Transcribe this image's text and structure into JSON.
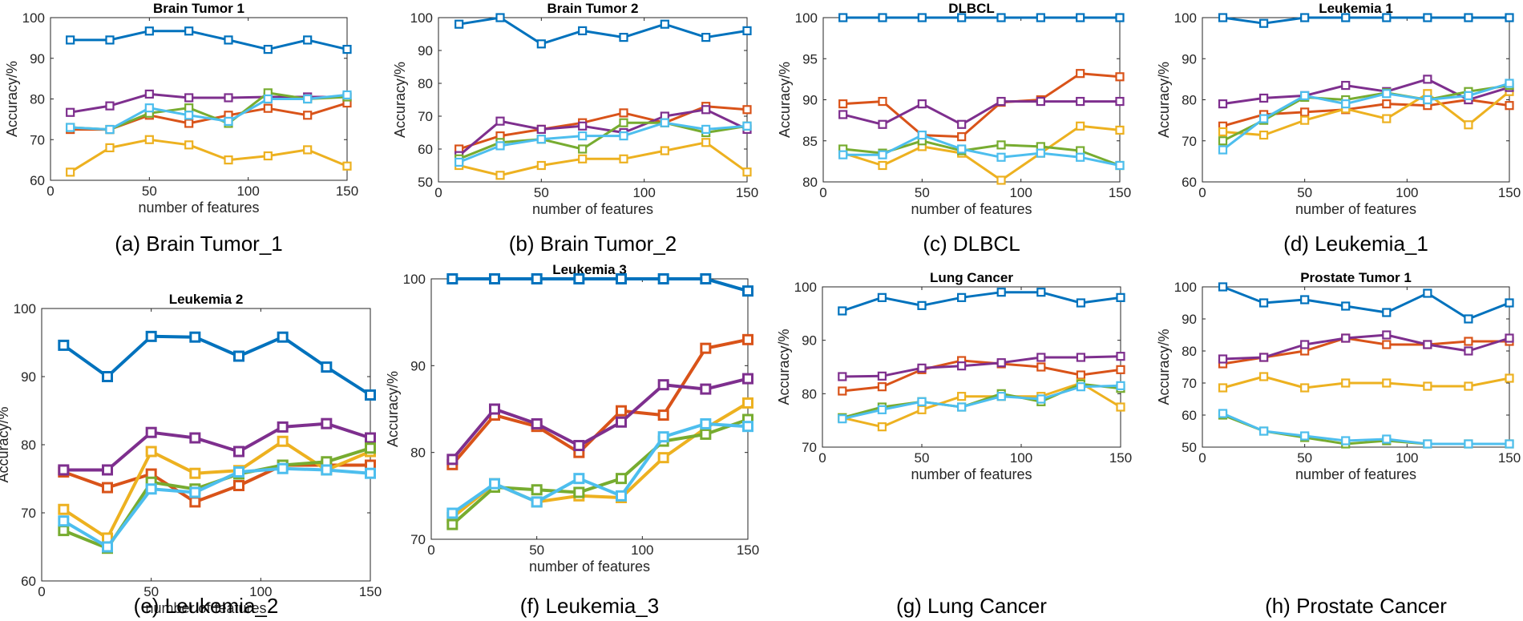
{
  "x_values": [
    10,
    30,
    50,
    70,
    90,
    110,
    130,
    150
  ],
  "xlabel": "number of features",
  "ylabel": "Accuracy/%",
  "series_colors": [
    "#0072BD",
    "#D95319",
    "#EDB120",
    "#7E2F8E",
    "#77AC30",
    "#4DBEEE"
  ],
  "chart_data": [
    {
      "type": "line",
      "title": "Brain Tumor 1",
      "caption": "(a) Brain Tumor_1",
      "xlabel": "number of features",
      "ylabel": "Accuracy/%",
      "xlim": [
        0,
        150
      ],
      "ylim": [
        60,
        100
      ],
      "xticks": [
        "0",
        "50",
        "100",
        "150"
      ],
      "yticks": [
        "60",
        "70",
        "80",
        "90",
        "100"
      ],
      "x": [
        10,
        30,
        50,
        70,
        90,
        110,
        130,
        150
      ],
      "series": [
        {
          "color": "#0072BD",
          "values": [
            94.5,
            94.5,
            96.7,
            96.7,
            94.5,
            92.2,
            94.5,
            92.2
          ]
        },
        {
          "color": "#D95319",
          "values": [
            72.5,
            72.5,
            76,
            74,
            76,
            77.7,
            76,
            79
          ]
        },
        {
          "color": "#EDB120",
          "values": [
            62,
            68,
            70,
            68.7,
            65,
            66,
            67.5,
            63.5
          ]
        },
        {
          "color": "#7E2F8E",
          "values": [
            76.7,
            78.3,
            81.2,
            80.3,
            80.3,
            80.5,
            80.5,
            80.5
          ]
        },
        {
          "color": "#77AC30",
          "values": [
            73,
            72.5,
            76.5,
            77.8,
            74,
            81.5,
            80,
            80.5
          ]
        },
        {
          "color": "#4DBEEE",
          "values": [
            73,
            72.5,
            77.8,
            76,
            74.5,
            80,
            80,
            81
          ]
        }
      ]
    },
    {
      "type": "line",
      "title": "Brain Tumor 2",
      "caption": "(b) Brain Tumor_2",
      "xlabel": "number of features",
      "ylabel": "Accuracy/%",
      "xlim": [
        0,
        150
      ],
      "ylim": [
        50,
        100
      ],
      "xticks": [
        "0",
        "50",
        "100",
        "150"
      ],
      "yticks": [
        "50",
        "60",
        "70",
        "80",
        "90",
        "100"
      ],
      "x": [
        10,
        30,
        50,
        70,
        90,
        110,
        130,
        150
      ],
      "series": [
        {
          "color": "#0072BD",
          "values": [
            98,
            100,
            92,
            96,
            94,
            98,
            94,
            96
          ]
        },
        {
          "color": "#D95319",
          "values": [
            60,
            64,
            66,
            68,
            71,
            68,
            73,
            72
          ]
        },
        {
          "color": "#EDB120",
          "values": [
            55,
            52,
            55,
            57,
            57,
            59.5,
            62,
            53
          ]
        },
        {
          "color": "#7E2F8E",
          "values": [
            58,
            68.5,
            66,
            67,
            65,
            70,
            72,
            66
          ]
        },
        {
          "color": "#77AC30",
          "values": [
            57,
            62,
            63,
            60,
            68,
            68,
            65,
            67
          ]
        },
        {
          "color": "#4DBEEE",
          "values": [
            56,
            61,
            63,
            64,
            64,
            68,
            66,
            67
          ]
        }
      ]
    },
    {
      "type": "line",
      "title": "DLBCL",
      "caption": "(c) DLBCL",
      "xlabel": "number of features",
      "ylabel": "Accuracy/%",
      "xlim": [
        0,
        150
      ],
      "ylim": [
        80,
        100
      ],
      "xticks": [
        "0",
        "50",
        "100",
        "150"
      ],
      "yticks": [
        "80",
        "85",
        "90",
        "95",
        "100"
      ],
      "x": [
        10,
        30,
        50,
        70,
        90,
        110,
        130,
        150
      ],
      "series": [
        {
          "color": "#0072BD",
          "values": [
            100,
            100,
            100,
            100,
            100,
            100,
            100,
            100
          ]
        },
        {
          "color": "#D95319",
          "values": [
            89.5,
            89.8,
            85.7,
            85.5,
            89.7,
            90,
            93.2,
            92.8
          ]
        },
        {
          "color": "#EDB120",
          "values": [
            83.5,
            82,
            84.3,
            83.5,
            80.2,
            83.5,
            86.8,
            86.3
          ]
        },
        {
          "color": "#7E2F8E",
          "values": [
            88.2,
            87,
            89.5,
            87,
            89.8,
            89.8,
            89.8,
            89.8
          ]
        },
        {
          "color": "#77AC30",
          "values": [
            84,
            83.5,
            85,
            83.8,
            84.5,
            84.3,
            83.8,
            82
          ]
        },
        {
          "color": "#4DBEEE",
          "values": [
            83.3,
            83.3,
            85.7,
            84,
            83,
            83.5,
            83,
            82
          ]
        }
      ]
    },
    {
      "type": "line",
      "title": "Leukemia 1",
      "caption": "(d) Leukemia_1",
      "xlabel": "number of features",
      "ylabel": "Accuracy/%",
      "xlim": [
        0,
        150
      ],
      "ylim": [
        60,
        100
      ],
      "xticks": [
        "0",
        "50",
        "100",
        "150"
      ],
      "yticks": [
        "60",
        "70",
        "80",
        "90",
        "100"
      ],
      "x": [
        10,
        30,
        50,
        70,
        90,
        110,
        130,
        150
      ],
      "series": [
        {
          "color": "#0072BD",
          "values": [
            100,
            98.6,
            100,
            100,
            100,
            100,
            100,
            100
          ]
        },
        {
          "color": "#D95319",
          "values": [
            73.6,
            76.4,
            77,
            77.6,
            79,
            78.6,
            80,
            78.6
          ]
        },
        {
          "color": "#EDB120",
          "values": [
            72.2,
            71.4,
            75,
            77.8,
            75.4,
            81.5,
            73.9,
            82
          ]
        },
        {
          "color": "#7E2F8E",
          "values": [
            79,
            80.4,
            81,
            83.5,
            82,
            85,
            80,
            83
          ]
        },
        {
          "color": "#77AC30",
          "values": [
            70,
            75,
            80.6,
            80,
            81.7,
            80,
            82,
            83.5
          ]
        },
        {
          "color": "#4DBEEE",
          "values": [
            67.8,
            75.4,
            81,
            79,
            81.5,
            80,
            81,
            84
          ]
        }
      ]
    },
    {
      "type": "line",
      "title": "Leukemia 2",
      "caption": "(e) Leukemia_2",
      "xlabel": "number of features",
      "ylabel": "Accuracy/%",
      "xlim": [
        0,
        150
      ],
      "ylim": [
        60,
        100
      ],
      "xticks": [
        "0",
        "50",
        "100",
        "150"
      ],
      "yticks": [
        "60",
        "70",
        "80",
        "90",
        "100"
      ],
      "x": [
        10,
        30,
        50,
        70,
        90,
        110,
        130,
        150
      ],
      "series": [
        {
          "color": "#0072BD",
          "values": [
            94.6,
            90,
            95.9,
            95.8,
            93,
            95.8,
            91.4,
            87.3
          ]
        },
        {
          "color": "#D95319",
          "values": [
            76,
            73.7,
            75.7,
            71.6,
            74,
            77,
            77,
            77
          ]
        },
        {
          "color": "#EDB120",
          "values": [
            70.5,
            66.3,
            79,
            75.8,
            76.2,
            80.5,
            76.3,
            79
          ]
        },
        {
          "color": "#7E2F8E",
          "values": [
            76.3,
            76.3,
            81.8,
            81,
            79,
            82.6,
            83.1,
            81
          ]
        },
        {
          "color": "#77AC30",
          "values": [
            67.4,
            64.8,
            74.5,
            73.5,
            75.7,
            77,
            77.5,
            79.5
          ]
        },
        {
          "color": "#4DBEEE",
          "values": [
            68.8,
            65,
            73.5,
            73,
            76,
            76.5,
            76.3,
            75.8
          ]
        }
      ]
    },
    {
      "type": "line",
      "title": "Leukemia 3",
      "caption": "(f) Leukemia_3",
      "xlabel": "number of features",
      "ylabel": "Accuracy/%",
      "xlim": [
        0,
        150
      ],
      "ylim": [
        70,
        100
      ],
      "xticks": [
        "0",
        "50",
        "100",
        "150"
      ],
      "yticks": [
        "70",
        "80",
        "90",
        "100"
      ],
      "x": [
        10,
        30,
        50,
        70,
        90,
        110,
        130,
        150
      ],
      "series": [
        {
          "color": "#0072BD",
          "values": [
            100,
            100,
            100,
            100,
            100,
            100,
            100,
            98.6
          ]
        },
        {
          "color": "#D95319",
          "values": [
            78.6,
            84.3,
            83,
            80,
            84.8,
            84.3,
            92,
            93
          ]
        },
        {
          "color": "#EDB120",
          "values": [
            72.5,
            76.4,
            74.3,
            75,
            74.8,
            79.4,
            82.8,
            85.7
          ]
        },
        {
          "color": "#7E2F8E",
          "values": [
            79.2,
            85,
            83.3,
            80.8,
            83.5,
            87.8,
            87.3,
            88.5
          ]
        },
        {
          "color": "#77AC30",
          "values": [
            71.7,
            76,
            75.7,
            75.4,
            77,
            81.3,
            82.1,
            83.8
          ]
        },
        {
          "color": "#4DBEEE",
          "values": [
            73,
            76.4,
            74.3,
            77,
            75,
            81.8,
            83.3,
            83
          ]
        }
      ]
    },
    {
      "type": "line",
      "title": "Lung Cancer",
      "caption": "(g) Lung Cancer",
      "xlabel": "number of features",
      "ylabel": "Accuracy/%",
      "xlim": [
        0,
        150
      ],
      "ylim": [
        70,
        100
      ],
      "xticks": [
        "0",
        "50",
        "100",
        "150"
      ],
      "yticks": [
        "70",
        "80",
        "90",
        "100"
      ],
      "x": [
        10,
        30,
        50,
        70,
        90,
        110,
        130,
        150
      ],
      "series": [
        {
          "color": "#0072BD",
          "values": [
            95.5,
            98,
            96.5,
            98,
            99,
            99,
            97,
            98
          ]
        },
        {
          "color": "#D95319",
          "values": [
            80.5,
            81.3,
            84.5,
            86.2,
            85.6,
            85,
            83.5,
            84.5
          ]
        },
        {
          "color": "#EDB120",
          "values": [
            75.5,
            73.8,
            77,
            79.5,
            79.5,
            79.5,
            82,
            77.5
          ]
        },
        {
          "color": "#7E2F8E",
          "values": [
            83.2,
            83.3,
            84.8,
            85.2,
            85.8,
            86.8,
            86.8,
            87
          ]
        },
        {
          "color": "#77AC30",
          "values": [
            75.5,
            77.5,
            78.5,
            77.5,
            80,
            78.5,
            81.8,
            81
          ]
        },
        {
          "color": "#4DBEEE",
          "values": [
            75.3,
            77,
            78.5,
            77.5,
            79.5,
            79,
            81.3,
            81.5
          ]
        }
      ]
    },
    {
      "type": "line",
      "title": "Prostate Tumor 1",
      "caption": "(h) Prostate Cancer",
      "xlabel": "number of features",
      "ylabel": "Accuracy/%",
      "xlim": [
        0,
        150
      ],
      "ylim": [
        50,
        100
      ],
      "xticks": [
        "0",
        "50",
        "100",
        "150"
      ],
      "yticks": [
        "50",
        "60",
        "70",
        "80",
        "90",
        "100"
      ],
      "x": [
        10,
        30,
        50,
        70,
        90,
        110,
        130,
        150
      ],
      "series": [
        {
          "color": "#0072BD",
          "values": [
            100,
            95,
            96,
            94,
            92,
            98,
            90,
            95
          ]
        },
        {
          "color": "#D95319",
          "values": [
            76,
            78,
            80,
            84,
            82,
            82,
            83,
            83
          ]
        },
        {
          "color": "#EDB120",
          "values": [
            68.5,
            72,
            68.5,
            70,
            70,
            69,
            69,
            71.5
          ]
        },
        {
          "color": "#7E2F8E",
          "values": [
            77.5,
            78,
            82,
            84,
            85,
            82,
            80,
            84
          ]
        },
        {
          "color": "#77AC30",
          "values": [
            60,
            55,
            53,
            51,
            52,
            51,
            51,
            51
          ]
        },
        {
          "color": "#4DBEEE",
          "values": [
            60.5,
            55,
            53.5,
            52,
            52.5,
            51,
            51,
            51
          ]
        }
      ]
    }
  ]
}
